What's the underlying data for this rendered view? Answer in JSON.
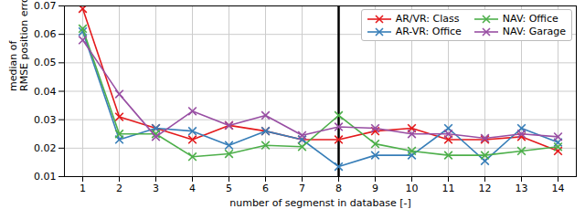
{
  "chart_data": {
    "type": "line",
    "x_label": "number of segmenst in database [-]",
    "y_label": "median of\nRMSE position errors [m]",
    "x": [
      1,
      2,
      3,
      4,
      5,
      6,
      7,
      8,
      9,
      10,
      11,
      12,
      13,
      14
    ],
    "xlim": [
      0.5,
      14.5
    ],
    "xticks": [
      1,
      2,
      3,
      4,
      5,
      6,
      7,
      8,
      9,
      10,
      11,
      12,
      13,
      14
    ],
    "ylim": [
      0.01,
      0.07
    ],
    "yticks": [
      0.01,
      0.02,
      0.03,
      0.04,
      0.05,
      0.06,
      0.07
    ],
    "grid": true,
    "legend": "upper right",
    "marker": "x",
    "vline_x": 8,
    "series": [
      {
        "name": "AR/VR: Class",
        "color": "#e41a1c",
        "values": [
          0.069,
          0.031,
          0.027,
          0.023,
          0.028,
          0.026,
          0.023,
          0.023,
          0.026,
          0.027,
          0.023,
          0.023,
          0.024,
          0.019
        ]
      },
      {
        "name": "AR-VR: Office",
        "color": "#377eb8",
        "values": [
          0.061,
          0.023,
          0.027,
          0.026,
          0.021,
          0.026,
          0.023,
          0.0135,
          0.0175,
          0.0175,
          0.027,
          0.0155,
          0.027,
          0.022
        ]
      },
      {
        "name": "NAV: Office",
        "color": "#4daf4a",
        "values": [
          0.062,
          0.025,
          0.025,
          0.017,
          0.018,
          0.021,
          0.0205,
          0.0315,
          0.0215,
          0.019,
          0.0175,
          0.0175,
          0.019,
          0.0205
        ]
      },
      {
        "name": "NAV: Garage",
        "color": "#984ea3",
        "values": [
          0.058,
          0.039,
          0.024,
          0.033,
          0.028,
          0.0315,
          0.0245,
          0.0275,
          0.027,
          0.025,
          0.025,
          0.0235,
          0.025,
          0.024
        ]
      }
    ]
  }
}
